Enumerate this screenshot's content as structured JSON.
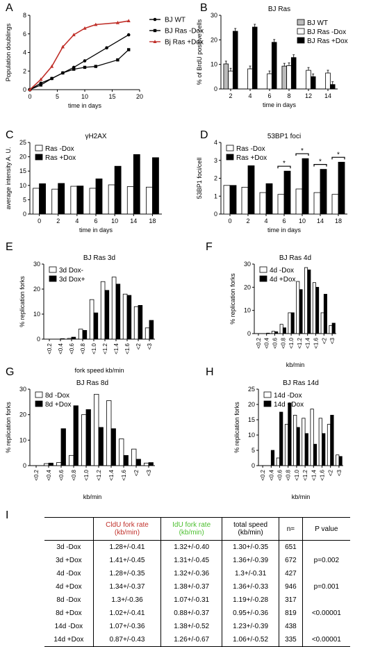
{
  "panels": [
    {
      "id": "A",
      "type": "line",
      "title": "",
      "xlabel": "time in days",
      "ylabel": "Population doublings",
      "xlim": [
        0,
        20
      ],
      "ylim": [
        0,
        8
      ],
      "xticks": [
        0,
        5,
        10,
        15,
        20
      ],
      "yticks": [
        0,
        2,
        4,
        6,
        8
      ],
      "legend": "right",
      "series": [
        {
          "name": "BJ WT",
          "color": "#000000",
          "marker": "circle",
          "points": [
            [
              0,
              0
            ],
            [
              2,
              0.7
            ],
            [
              4,
              1.2
            ],
            [
              6,
              1.8
            ],
            [
              8,
              2.4
            ],
            [
              10,
              3.1
            ],
            [
              14,
              4.5
            ],
            [
              18,
              5.9
            ]
          ]
        },
        {
          "name": "BJ Ras -Dox",
          "color": "#000000",
          "marker": "square",
          "points": [
            [
              0,
              0
            ],
            [
              2,
              0.5
            ],
            [
              4,
              1.2
            ],
            [
              6,
              1.8
            ],
            [
              8,
              2.2
            ],
            [
              10,
              2.4
            ],
            [
              12,
              2.5
            ],
            [
              16,
              3.2
            ],
            [
              18,
              4.3
            ]
          ]
        },
        {
          "name": "Bj Ras +Dox",
          "color": "#c0302a",
          "marker": "triangle",
          "points": [
            [
              0,
              0
            ],
            [
              2,
              1.1
            ],
            [
              4,
              2.5
            ],
            [
              6,
              4.6
            ],
            [
              8,
              5.9
            ],
            [
              10,
              6.6
            ],
            [
              12,
              7.0
            ],
            [
              16,
              7.2
            ],
            [
              18,
              7.4
            ]
          ]
        }
      ]
    },
    {
      "id": "B",
      "type": "bar",
      "title": "BJ Ras",
      "xlabel": "time in days",
      "ylabel": "% of BrdU positive cells",
      "ylim": [
        0,
        30
      ],
      "yticks": [
        0,
        10,
        20,
        30
      ],
      "categories": [
        "2",
        "4",
        "6",
        "8",
        "12",
        "14"
      ],
      "legend": "top-right",
      "errorbars": true,
      "series": [
        {
          "name": "BJ WT",
          "fill": "#bbbbbb",
          "values": [
            10.2,
            null,
            null,
            9.3,
            null,
            null
          ]
        },
        {
          "name": "BJ Ras -Dox",
          "fill": "#ffffff",
          "values": [
            7.3,
            8.2,
            6.2,
            9.5,
            7.6,
            6.5
          ]
        },
        {
          "name": "BJ Ras +Dox",
          "fill": "#000000",
          "values": [
            23.5,
            25.2,
            19.0,
            12.8,
            5.0,
            1.8
          ]
        }
      ]
    },
    {
      "id": "C",
      "type": "bar",
      "title": "γH2AX",
      "xlabel": "time in days",
      "ylabel": "average intensity A. U.",
      "ylim": [
        0,
        25
      ],
      "yticks": [
        0,
        5,
        10,
        15,
        20,
        25
      ],
      "categories": [
        "0",
        "2",
        "4",
        "6",
        "10",
        "14",
        "18"
      ],
      "legend": "top-left",
      "series": [
        {
          "name": "Ras -Dox",
          "fill": "#ffffff",
          "values": [
            9.0,
            8.7,
            9.7,
            9.0,
            10.2,
            9.6,
            9.4
          ]
        },
        {
          "name": "Ras +Dox",
          "fill": "#000000",
          "values": [
            10.6,
            10.7,
            9.8,
            12.3,
            16.7,
            20.8,
            19.7
          ]
        }
      ]
    },
    {
      "id": "D",
      "type": "bar",
      "title": "53BP1 foci",
      "xlabel": "time in days",
      "ylabel": "53BP1 foci/cell",
      "ylim": [
        0,
        4
      ],
      "yticks": [
        0,
        1,
        2,
        3,
        4
      ],
      "categories": [
        "0",
        "2",
        "4",
        "6",
        "10",
        "14",
        "18"
      ],
      "legend": "top-left",
      "significance": [
        3,
        4,
        5,
        6
      ],
      "sig_mark": "*",
      "series": [
        {
          "name": "Ras -Dox",
          "fill": "#ffffff",
          "values": [
            1.6,
            1.5,
            1.2,
            1.1,
            1.4,
            1.2,
            1.1
          ]
        },
        {
          "name": "Ras +Dox",
          "fill": "#000000",
          "values": [
            1.6,
            2.7,
            1.7,
            2.4,
            3.1,
            2.5,
            2.9
          ]
        }
      ]
    },
    {
      "id": "E",
      "type": "bar",
      "title": "BJ Ras 3d",
      "xlabel": "fork speed kb/min",
      "ylabel": "% replication forks",
      "ylim": [
        0,
        30
      ],
      "yticks": [
        0,
        10,
        20,
        30
      ],
      "categories": [
        "<0.2",
        "<0.4",
        "<0.6",
        "<0.8",
        "<1.0",
        "<1.2",
        "<1.4",
        "<1.6",
        "<2",
        "<3"
      ],
      "legend": "top-left",
      "series": [
        {
          "name": "3d Dox-",
          "fill": "#ffffff",
          "values": [
            0,
            0,
            0.3,
            4.0,
            15.8,
            23.0,
            24.8,
            18.0,
            13.0,
            4.5
          ]
        },
        {
          "name": "3d Dox+",
          "fill": "#000000",
          "values": [
            0,
            0.2,
            0.8,
            3.5,
            10.5,
            19.5,
            22.0,
            17.5,
            13.5,
            7.5
          ]
        }
      ]
    },
    {
      "id": "F",
      "type": "bar",
      "title": "BJ Ras 4d",
      "xlabel": "kb/min",
      "ylabel": "% replication forks",
      "ylim": [
        0,
        30
      ],
      "yticks": [
        0,
        10,
        20,
        30
      ],
      "categories": [
        "<0.2",
        "<0.4",
        "<0.6",
        "<0.8",
        "<1.0",
        "<1.2",
        "<1.4",
        "<1.6",
        "<2",
        "<3"
      ],
      "legend": "top-left",
      "series": [
        {
          "name": "4d -Dox",
          "fill": "#ffffff",
          "values": [
            0,
            0,
            1.0,
            4.0,
            9.0,
            22.5,
            28.5,
            22.0,
            9.0,
            3.5
          ]
        },
        {
          "name": "4d +Dox",
          "fill": "#000000",
          "values": [
            0,
            0.2,
            0.8,
            2.5,
            9.0,
            19.0,
            27.5,
            20.0,
            17.0,
            4.5
          ]
        }
      ]
    },
    {
      "id": "G",
      "type": "bar",
      "title": "BJ Ras 8d",
      "xlabel": "kb/min",
      "ylabel": "% replication forks",
      "ylim": [
        0,
        30
      ],
      "yticks": [
        0,
        10,
        20,
        30
      ],
      "categories": [
        "<0.2",
        "<0.4",
        "<0.6",
        "<0.8",
        "<1.0",
        "<1.2",
        "<1.4",
        "<1.6",
        "<2",
        "<3"
      ],
      "legend": "top-left",
      "series": [
        {
          "name": "8d -Dox",
          "fill": "#ffffff",
          "values": [
            0,
            0.8,
            1.2,
            4.0,
            20.0,
            28.0,
            25.5,
            10.5,
            6.5,
            1.0
          ]
        },
        {
          "name": "8d +Dox",
          "fill": "#000000",
          "values": [
            0,
            1.0,
            14.5,
            23.5,
            22.0,
            15.0,
            14.5,
            4.0,
            2.5,
            1.2
          ]
        }
      ]
    },
    {
      "id": "H",
      "type": "bar",
      "title": "BJ Ras 14d",
      "xlabel": "kb/min",
      "ylabel": "% replication forks",
      "ylim": [
        0,
        25
      ],
      "yticks": [
        0,
        5,
        10,
        15,
        20,
        25
      ],
      "categories": [
        "<0.2",
        "<0.4",
        "<0.6",
        "<0.8",
        "<1.0",
        "<1.2",
        "<1.4",
        "<1.6",
        "<2",
        "<3"
      ],
      "legend": "top-left",
      "series": [
        {
          "name": "14d -Dox",
          "fill": "#ffffff",
          "values": [
            0,
            0,
            2.5,
            13.5,
            16.5,
            15.5,
            18.5,
            15.5,
            13.5,
            3.5
          ]
        },
        {
          "name": "14d +Dox",
          "fill": "#000000",
          "values": [
            0,
            5.0,
            17.5,
            20.5,
            12.5,
            10.5,
            7.0,
            10.5,
            16.5,
            3.0
          ]
        }
      ]
    }
  ],
  "table": {
    "label": "I",
    "headers": [
      {
        "line1": "",
        "line2": "",
        "color": "#000000"
      },
      {
        "line1": "CldU fork rate",
        "line2": "(kb/min)",
        "color": "#c0302a"
      },
      {
        "line1": "IdU fork rate",
        "line2": "(kb/min)",
        "color": "#4bbf2e"
      },
      {
        "line1": "total speed",
        "line2": "(kb/min)",
        "color": "#000000"
      },
      {
        "line1": "n=",
        "line2": "",
        "color": "#000000"
      },
      {
        "line1": "P value",
        "line2": "",
        "color": "#000000"
      }
    ],
    "rows": [
      [
        "3d -Dox",
        "1.28+/-0.41",
        "1.32+/-0.40",
        "1.30+/-0.35",
        "651",
        ""
      ],
      [
        "3d +Dox",
        "1.41+/-0.45",
        "1.31+/-0.45",
        "1.36+/-0.39",
        "672",
        "p=0.002"
      ],
      [
        "4d -Dox",
        "1.28+/-0.35",
        "1.32+/-0.36",
        "1.3+/-0.31",
        "427",
        ""
      ],
      [
        "4d +Dox",
        "1.34+/-0.37",
        "1.38+/-0.37",
        "1.36+/-0.33",
        "946",
        "p=0.001"
      ],
      [
        "8d -Dox",
        "1.3+/-0.36",
        "1.07+/-0.31",
        "1.19+/-0.28",
        "317",
        ""
      ],
      [
        "8d +Dox",
        "1.02+/-0.41",
        "0.88+/-0.37",
        "0.95+/-0.36",
        "819",
        "<0.00001"
      ],
      [
        "14d -Dox",
        "1.07+/-0.36",
        "1.38+/-0.52",
        "1.23+/-0.39",
        "438",
        ""
      ],
      [
        "14d +Dox",
        "0.87+/-0.43",
        "1.26+/-0.67",
        "1.06+/-0.52",
        "335",
        "<0.00001"
      ]
    ]
  }
}
